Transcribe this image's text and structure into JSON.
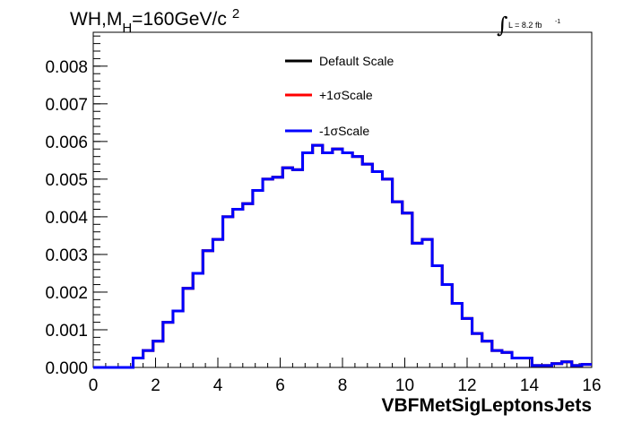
{
  "chart_data": {
    "type": "line",
    "title": {
      "main": "WH,M",
      "sub": "H",
      "rest": "=160GeV/c",
      "sup": "2"
    },
    "lumi": {
      "integral": "∫",
      "text": "L = 8.2 fb",
      "sup": "-1"
    },
    "xlabel": "VBFMetSigLeptonsJets",
    "ylabel": "",
    "xlim": [
      0,
      16
    ],
    "ylim": [
      0,
      0.0089
    ],
    "x_ticks": [
      "0",
      "2",
      "4",
      "6",
      "8",
      "10",
      "12",
      "14",
      "16"
    ],
    "y_ticks": [
      "0.000",
      "0.001",
      "0.002",
      "0.003",
      "0.004",
      "0.005",
      "0.006",
      "0.007",
      "0.008"
    ],
    "bin_width": 0.32,
    "series": [
      {
        "name": "Default Scale",
        "color": "#000000",
        "values": [
          0,
          0,
          0,
          0,
          0.00025,
          0.00045,
          0.0007,
          0.0012,
          0.0015,
          0.0021,
          0.0025,
          0.0031,
          0.0034,
          0.004,
          0.0042,
          0.00435,
          0.0047,
          0.005,
          0.00505,
          0.0053,
          0.00525,
          0.0057,
          0.0059,
          0.0057,
          0.0058,
          0.0057,
          0.0056,
          0.0054,
          0.0052,
          0.005,
          0.0044,
          0.0041,
          0.0033,
          0.0034,
          0.0027,
          0.0022,
          0.0017,
          0.0013,
          0.0009,
          0.0007,
          0.00045,
          0.0004,
          0.00025,
          0.00025,
          5e-05,
          5e-05,
          0.0001,
          0.00015,
          5e-05,
          8e-05
        ]
      },
      {
        "name": "+1σScale",
        "color": "#ff0000",
        "values": [
          0,
          0,
          0,
          0,
          0.00025,
          0.00045,
          0.0007,
          0.0012,
          0.0015,
          0.0021,
          0.0025,
          0.0031,
          0.0034,
          0.004,
          0.0042,
          0.00435,
          0.0047,
          0.005,
          0.00505,
          0.0053,
          0.00525,
          0.0057,
          0.0059,
          0.0057,
          0.0058,
          0.0057,
          0.0056,
          0.0054,
          0.0052,
          0.005,
          0.0044,
          0.0041,
          0.0033,
          0.0034,
          0.0027,
          0.0022,
          0.0017,
          0.0013,
          0.0009,
          0.0007,
          0.00045,
          0.0004,
          0.00025,
          0.00025,
          5e-05,
          5e-05,
          0.0001,
          0.00015,
          5e-05,
          8e-05
        ]
      },
      {
        "name": "-1σScale",
        "color": "#0000ff",
        "values": [
          0,
          0,
          0,
          0,
          0.00025,
          0.00045,
          0.0007,
          0.0012,
          0.0015,
          0.0021,
          0.0025,
          0.0031,
          0.0034,
          0.004,
          0.0042,
          0.00435,
          0.0047,
          0.005,
          0.00505,
          0.0053,
          0.00525,
          0.0057,
          0.0059,
          0.0057,
          0.0058,
          0.0057,
          0.0056,
          0.0054,
          0.0052,
          0.005,
          0.0044,
          0.0041,
          0.0033,
          0.0034,
          0.0027,
          0.0022,
          0.0017,
          0.0013,
          0.0009,
          0.0007,
          0.00045,
          0.0004,
          0.00025,
          0.00025,
          5e-05,
          5e-05,
          0.0001,
          0.00015,
          5e-05,
          8e-05
        ]
      }
    ],
    "legend_position": "top-center",
    "grid": false
  }
}
